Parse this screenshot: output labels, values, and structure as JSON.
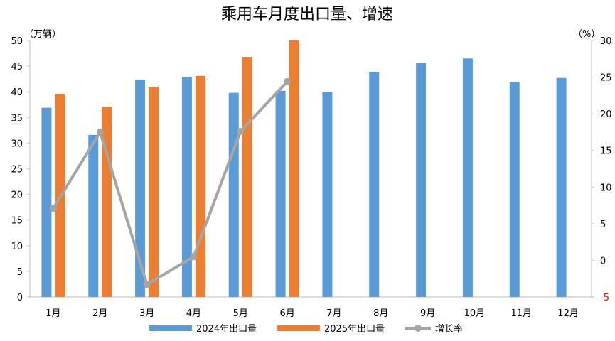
{
  "chart_data": {
    "type": "bar",
    "title": "乘用车月度出口量、增速",
    "left_unit": "（万辆）",
    "right_unit": "（%）",
    "categories": [
      "1月",
      "2月",
      "3月",
      "4月",
      "5月",
      "6月",
      "7月",
      "8月",
      "9月",
      "10月",
      "11月",
      "12月"
    ],
    "ylim": [
      0,
      50
    ],
    "yticks": [
      0,
      5,
      10,
      15,
      20,
      25,
      30,
      35,
      40,
      45,
      50
    ],
    "y2lim": [
      -5,
      30
    ],
    "y2ticks": [
      -5,
      0,
      5,
      10,
      15,
      20,
      25,
      30
    ],
    "grid": false,
    "legend_position": "bottom",
    "series": [
      {
        "name": "2024年出口量",
        "kind": "bar",
        "axis": "left",
        "color": "#5b9bd5",
        "values": [
          36.9,
          31.6,
          42.4,
          42.9,
          39.8,
          40.2,
          39.9,
          43.9,
          45.7,
          46.5,
          41.9,
          42.7
        ]
      },
      {
        "name": "2025年出口量",
        "kind": "bar",
        "axis": "left",
        "color": "#ed7d31",
        "values": [
          39.5,
          37.1,
          41.0,
          43.1,
          46.8,
          50.0,
          null,
          null,
          null,
          null,
          null,
          null
        ]
      },
      {
        "name": "增长率",
        "kind": "line",
        "axis": "right",
        "color": "#a5a5a5",
        "values": [
          7.1,
          17.5,
          -3.3,
          0.5,
          17.6,
          24.4,
          null,
          null,
          null,
          null,
          null,
          null
        ]
      }
    ]
  }
}
